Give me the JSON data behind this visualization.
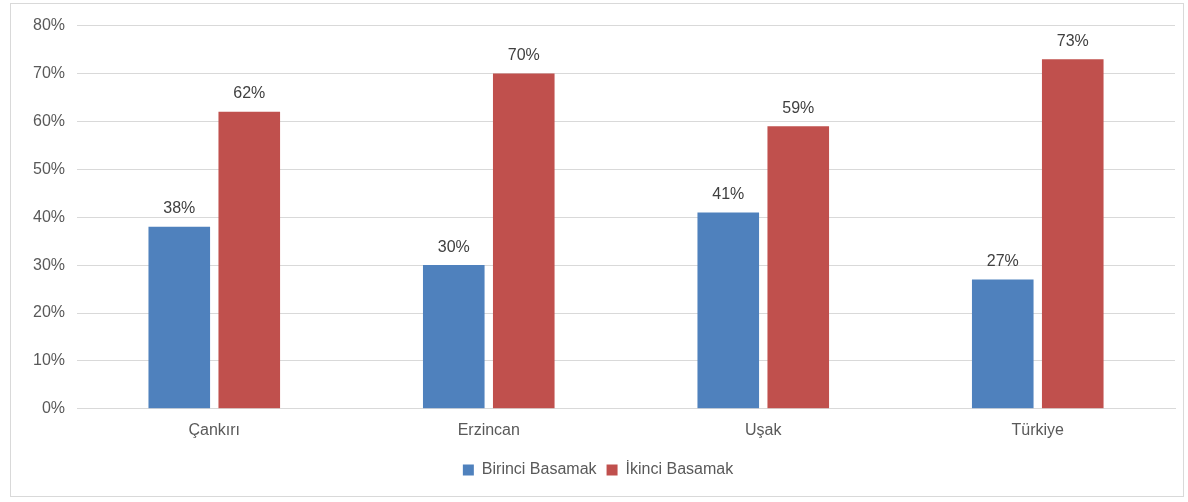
{
  "chart_data": {
    "type": "bar",
    "categories": [
      "Çankırı",
      "Erzincan",
      "Uşak",
      "Türkiye"
    ],
    "series": [
      {
        "name": "Birinci Basamak",
        "color": "#4f81bd",
        "values": [
          38,
          30,
          41,
          27
        ],
        "value_labels": [
          "38%",
          "30%",
          "41%",
          "27%"
        ]
      },
      {
        "name": "İkinci Basamak",
        "color": "#c0504d",
        "values": [
          62,
          70,
          59,
          73
        ],
        "value_labels": [
          "62%",
          "70%",
          "59%",
          "73%"
        ]
      }
    ],
    "ylim": [
      0,
      80
    ],
    "yticks": [
      {
        "value": 0,
        "label": "0%"
      },
      {
        "value": 10,
        "label": "10%"
      },
      {
        "value": 20,
        "label": "20%"
      },
      {
        "value": 30,
        "label": "30%"
      },
      {
        "value": 40,
        "label": "40%"
      },
      {
        "value": 50,
        "label": "50%"
      },
      {
        "value": 60,
        "label": "60%"
      },
      {
        "value": 70,
        "label": "70%"
      },
      {
        "value": 80,
        "label": "80%"
      }
    ],
    "grid": "y",
    "legend": "bottom"
  }
}
